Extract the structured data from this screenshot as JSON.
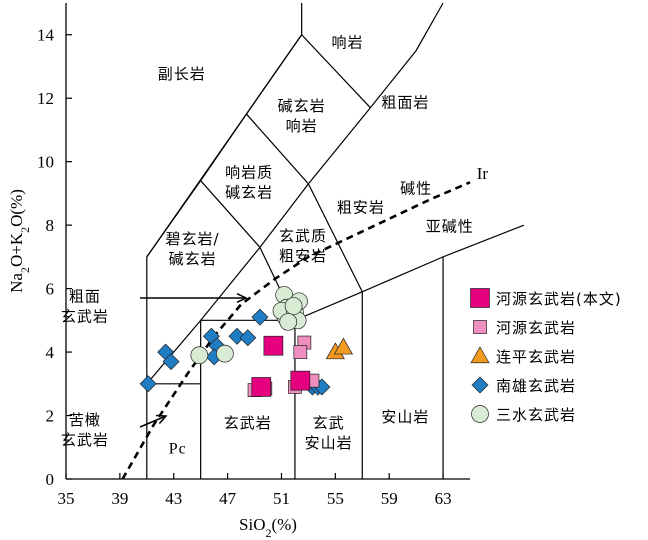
{
  "chart_data": {
    "type": "scatter",
    "title": "",
    "xlabel": "SiO2(%)",
    "ylabel": "Na2O+K2O(%)",
    "xlim": [
      35,
      65
    ],
    "ylim": [
      0,
      15
    ],
    "xticks": [
      35,
      39,
      43,
      47,
      51,
      55,
      59,
      63
    ],
    "yticks": [
      0,
      2,
      4,
      6,
      8,
      10,
      12,
      14
    ],
    "fields": [
      {
        "name": "pc",
        "label": "Pc",
        "x": 43.3,
        "y": 0.8
      },
      {
        "name": "basalt",
        "label": "玄武岩",
        "x": 48.5,
        "y": 1.6
      },
      {
        "name": "basaltic-andesite",
        "label": "玄武\n安山岩",
        "x": 54.5,
        "y": 1.6
      },
      {
        "name": "andesite",
        "label": "安山岩",
        "x": 60.2,
        "y": 1.8
      },
      {
        "name": "picrobasalt",
        "label": "苦橄\n玄武岩",
        "x": 36.4,
        "y": 1.7
      },
      {
        "name": "trachybasalt",
        "label": "粗面\n玄武岩",
        "x": 36.4,
        "y": 5.6
      },
      {
        "name": "basanite-tephrite",
        "label": "碧玄岩/\n碱玄岩",
        "x": 44.4,
        "y": 7.4
      },
      {
        "name": "phonotephrite",
        "label": "响岩质\n碱玄岩",
        "x": 48.6,
        "y": 9.5
      },
      {
        "name": "basaltic-trachyandesite",
        "label": "玄武质\n粗安岩",
        "x": 52.6,
        "y": 7.5
      },
      {
        "name": "trachyandesite",
        "label": "粗安岩",
        "x": 56.9,
        "y": 8.4
      },
      {
        "name": "tephriphonolite",
        "label": "碱玄岩\n响岩",
        "x": 52.5,
        "y": 11.6
      },
      {
        "name": "foidite",
        "label": "副长岩",
        "x": 43.6,
        "y": 12.6
      },
      {
        "name": "phonolite",
        "label": "响岩",
        "x": 55.9,
        "y": 13.6
      },
      {
        "name": "trachyte",
        "label": "粗面岩",
        "x": 60.2,
        "y": 11.7
      },
      {
        "name": "alkaline",
        "label": "碱性",
        "x": 61.0,
        "y": 9.0
      },
      {
        "name": "subalkaline",
        "label": "亚碱性",
        "x": 63.5,
        "y": 7.8
      }
    ],
    "ir_label": "Ir",
    "series": [
      {
        "name": "河源玄武岩(本文)",
        "marker": "square",
        "color": "#e5007f",
        "size": "large",
        "points": [
          [
            50.4,
            4.2
          ],
          [
            49.5,
            2.9
          ],
          [
            52.4,
            3.1
          ]
        ]
      },
      {
        "name": "河源玄武岩",
        "marker": "square",
        "color": "#ef8fbf",
        "size": "small",
        "points": [
          [
            52.7,
            4.3
          ],
          [
            52.4,
            4.0
          ],
          [
            49.0,
            2.8
          ],
          [
            49.8,
            2.85
          ],
          [
            53.3,
            3.1
          ],
          [
            52.0,
            2.9
          ]
        ]
      },
      {
        "name": "连平玄武岩",
        "marker": "triangle",
        "color": "#f39a21",
        "size": "small",
        "points": [
          [
            55.0,
            4.0
          ],
          [
            55.6,
            4.15
          ]
        ]
      },
      {
        "name": "南雄玄武岩",
        "marker": "diamond",
        "color": "#1f7dc4",
        "size": "small",
        "points": [
          [
            41.1,
            3.0
          ],
          [
            42.4,
            4.0
          ],
          [
            42.8,
            3.7
          ],
          [
            45.8,
            4.5
          ],
          [
            46.2,
            4.2
          ],
          [
            46.0,
            3.85
          ],
          [
            47.7,
            4.5
          ],
          [
            48.5,
            4.45
          ],
          [
            49.4,
            5.1
          ],
          [
            52.2,
            2.95
          ],
          [
            53.3,
            2.9
          ],
          [
            53.7,
            2.9
          ],
          [
            54.0,
            2.9
          ]
        ]
      },
      {
        "name": "三水玄武岩",
        "marker": "circle",
        "color": "#d7ecd3",
        "size": "small",
        "points": [
          [
            51.2,
            5.8
          ],
          [
            51.4,
            5.4
          ],
          [
            51.3,
            5.1
          ],
          [
            51.6,
            5.05
          ],
          [
            51.0,
            5.3
          ],
          [
            52.0,
            5.25
          ],
          [
            52.2,
            5.0
          ],
          [
            52.3,
            5.6
          ],
          [
            51.9,
            5.45
          ],
          [
            51.5,
            4.95
          ],
          [
            46.8,
            3.95
          ],
          [
            44.9,
            3.9
          ]
        ]
      }
    ]
  }
}
